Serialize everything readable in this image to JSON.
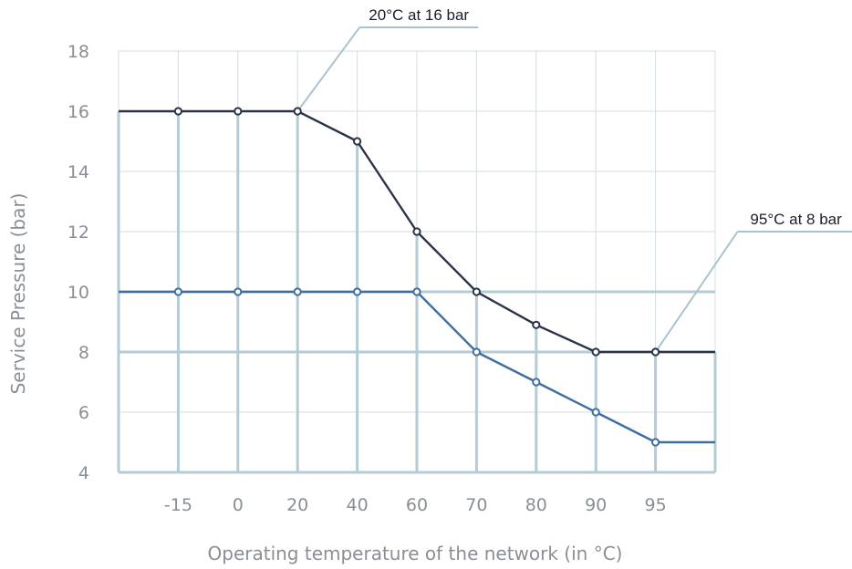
{
  "colors": {
    "upper_series": "#2b3446",
    "lower_series": "#3e6fa0",
    "thin_grid": "#d3dde2",
    "thick_grid": "#b5cbd5",
    "callout_line": "#a9c3cf",
    "tick_text": "#8a8f96"
  },
  "chart_data": {
    "type": "line",
    "categories": [
      "-15",
      "0",
      "20",
      "40",
      "60",
      "70",
      "80",
      "90",
      "95"
    ],
    "ylim": [
      4,
      18
    ],
    "yticks": [
      18,
      16,
      14,
      12,
      10,
      8,
      6,
      4
    ],
    "xlabel": "Operating temperature of the network (in °C)",
    "ylabel": "Service Pressure (bar)",
    "grid": true,
    "series": [
      {
        "values": [
          16,
          16,
          16,
          15,
          12,
          10,
          8.9,
          8,
          8
        ]
      },
      {
        "values": [
          10,
          10,
          10,
          10,
          10,
          8,
          7,
          6,
          5
        ]
      }
    ],
    "annotations": [
      {
        "text": "20°C at 16 bar",
        "category": "20",
        "value": 16
      },
      {
        "text": "95°C at 8 bar",
        "category": "95",
        "value": 8
      }
    ]
  }
}
